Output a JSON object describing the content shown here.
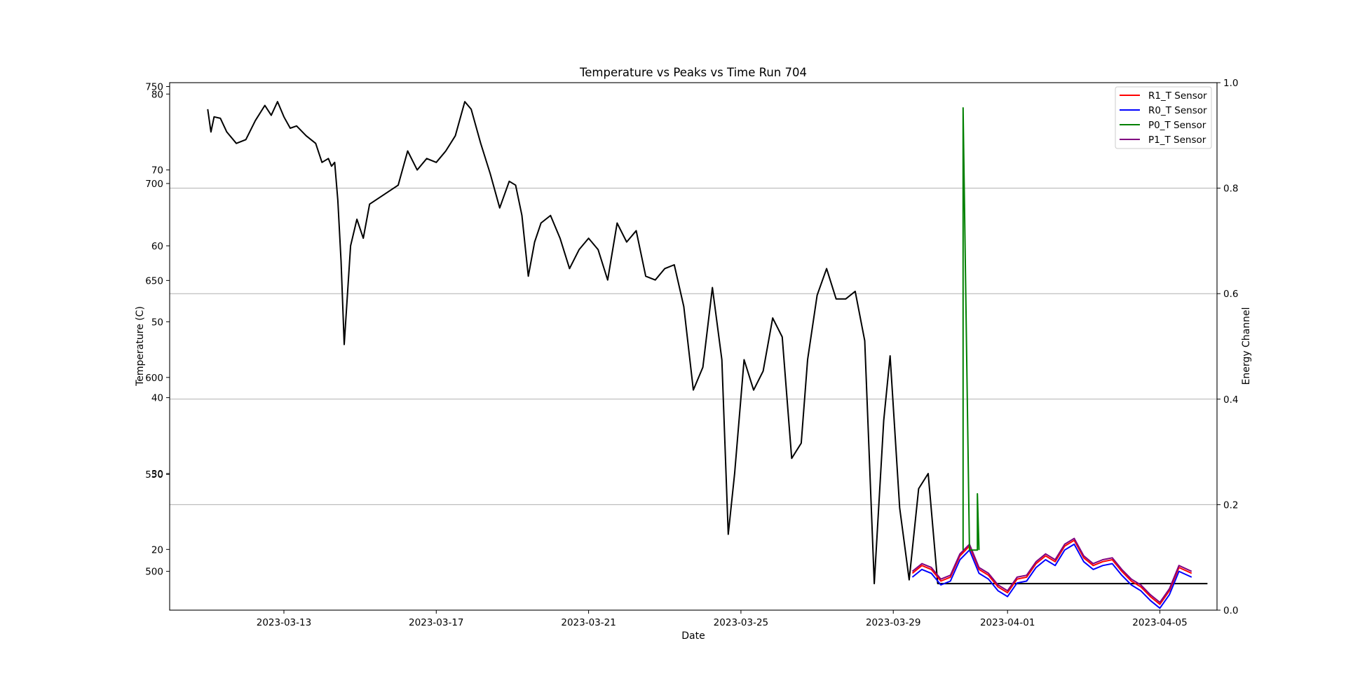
{
  "chart_data": {
    "type": "line",
    "title": "Temperature vs Peaks vs Time Run 704",
    "xlabel": "Date",
    "ylabel_left": "Temperature (C)",
    "ylabel_right": "Energy Channel",
    "xlim": [
      "2023-03-10T00:00",
      "2023-04-06T12:00"
    ],
    "x_ticks": [
      "2023-03-13",
      "2023-03-17",
      "2023-03-21",
      "2023-03-25",
      "2023-03-29",
      "2023-04-01",
      "2023-04-05"
    ],
    "y_left_temp": {
      "range": [
        12,
        81.5
      ],
      "ticks": [
        20,
        30,
        40,
        50,
        60,
        70,
        80
      ]
    },
    "y_left_peaks": {
      "range": [
        480,
        752
      ],
      "ticks": [
        500,
        550,
        600,
        650,
        700,
        750
      ]
    },
    "y_right": {
      "range": [
        0,
        1
      ],
      "ticks": [
        "0.0",
        "0.2",
        "0.4",
        "0.6",
        "0.8",
        "1.0"
      ],
      "grid": true
    },
    "legend_position": "top-right",
    "series": [
      {
        "name": "R1_T Sensor",
        "color": "#ff0000",
        "x": [
          "2023-03-29T12:00",
          "2023-03-29T18:00",
          "2023-03-30T00:00",
          "2023-03-30T06:00",
          "2023-03-30T12:00",
          "2023-03-30T18:00",
          "2023-03-31T00:00",
          "2023-03-31T06:00",
          "2023-03-31T12:00",
          "2023-03-31T18:00",
          "2023-04-01T00:00",
          "2023-04-01T06:00",
          "2023-04-01T12:00",
          "2023-04-01T18:00",
          "2023-04-02T00:00",
          "2023-04-02T06:00",
          "2023-04-02T12:00",
          "2023-04-02T18:00",
          "2023-04-03T00:00",
          "2023-04-03T06:00",
          "2023-04-03T12:00",
          "2023-04-03T18:00",
          "2023-04-04T00:00",
          "2023-04-04T06:00",
          "2023-04-04T12:00",
          "2023-04-04T18:00",
          "2023-04-05T00:00",
          "2023-04-05T06:00",
          "2023-04-05T12:00",
          "2023-04-05T20:00"
        ],
        "y": [
          499,
          503,
          501,
          495,
          497,
          508,
          513,
          501,
          498,
          492,
          489,
          496,
          497,
          504,
          508,
          505,
          513,
          516,
          507,
          503,
          505,
          506,
          500,
          495,
          492,
          487,
          483,
          490,
          502,
          499
        ]
      },
      {
        "name": "R0_T Sensor",
        "color": "#0000ff",
        "x": [
          "2023-03-29T12:00",
          "2023-03-29T18:00",
          "2023-03-30T00:00",
          "2023-03-30T06:00",
          "2023-03-30T12:00",
          "2023-03-30T18:00",
          "2023-03-31T00:00",
          "2023-03-31T06:00",
          "2023-03-31T12:00",
          "2023-03-31T18:00",
          "2023-04-01T00:00",
          "2023-04-01T06:00",
          "2023-04-01T12:00",
          "2023-04-01T18:00",
          "2023-04-02T00:00",
          "2023-04-02T06:00",
          "2023-04-02T12:00",
          "2023-04-02T18:00",
          "2023-04-03T00:00",
          "2023-04-03T06:00",
          "2023-04-03T12:00",
          "2023-04-03T18:00",
          "2023-04-04T00:00",
          "2023-04-04T06:00",
          "2023-04-04T12:00",
          "2023-04-04T18:00",
          "2023-04-05T00:00",
          "2023-04-05T06:00",
          "2023-04-05T12:00",
          "2023-04-05T20:00"
        ],
        "y": [
          497,
          501,
          499,
          493,
          495,
          506,
          511,
          499,
          496,
          490,
          487,
          494,
          495,
          502,
          506,
          503,
          511,
          514,
          505,
          501,
          503,
          504,
          498,
          493,
          490,
          485,
          481,
          488,
          500,
          497
        ]
      },
      {
        "name": "P0_T Sensor",
        "color": "#008000",
        "x": [
          "2023-03-30T20:00",
          "2023-03-30T20:00",
          "2023-03-31T00:00",
          "2023-03-31T05:00",
          "2023-03-31T05:00",
          "2023-03-31T06:00"
        ],
        "y": [
          511,
          739,
          511,
          511,
          540,
          511
        ]
      },
      {
        "name": "P1_T Sensor",
        "color": "#800080",
        "x": [
          "2023-03-29T12:00",
          "2023-03-29T18:00",
          "2023-03-30T00:00",
          "2023-03-30T06:00",
          "2023-03-30T12:00",
          "2023-03-30T18:00",
          "2023-03-31T00:00",
          "2023-03-31T06:00",
          "2023-03-31T12:00",
          "2023-03-31T18:00",
          "2023-04-01T00:00",
          "2023-04-01T06:00",
          "2023-04-01T12:00",
          "2023-04-01T18:00",
          "2023-04-02T00:00",
          "2023-04-02T06:00",
          "2023-04-02T12:00",
          "2023-04-02T18:00",
          "2023-04-03T00:00",
          "2023-04-03T06:00",
          "2023-04-03T12:00",
          "2023-04-03T18:00",
          "2023-04-04T00:00",
          "2023-04-04T06:00",
          "2023-04-04T12:00",
          "2023-04-04T18:00",
          "2023-04-05T00:00",
          "2023-04-05T06:00",
          "2023-04-05T12:00",
          "2023-04-05T20:00"
        ],
        "y": [
          500,
          504,
          502,
          496,
          498,
          509,
          514,
          502,
          499,
          493,
          490,
          497,
          498,
          505,
          509,
          506,
          514,
          517,
          508,
          504,
          506,
          507,
          501,
          496,
          493,
          488,
          484,
          491,
          503,
          500
        ]
      },
      {
        "name": "",
        "color": "#000000",
        "x": [
          "2023-03-11T00:00",
          "2023-03-11T02:00",
          "2023-03-11T04:00",
          "2023-03-11T08:00",
          "2023-03-11T12:00",
          "2023-03-11T18:00",
          "2023-03-12T00:00",
          "2023-03-12T06:00",
          "2023-03-12T12:00",
          "2023-03-12T16:00",
          "2023-03-12T20:00",
          "2023-03-13T00:00",
          "2023-03-13T04:00",
          "2023-03-13T08:00",
          "2023-03-13T14:00",
          "2023-03-13T20:00",
          "2023-03-14T00:00",
          "2023-03-14T04:00",
          "2023-03-14T06:00",
          "2023-03-14T08:00",
          "2023-03-14T10:00",
          "2023-03-14T12:00",
          "2023-03-14T14:00",
          "2023-03-14T18:00",
          "2023-03-14T22:00",
          "2023-03-15T02:00",
          "2023-03-15T06:00",
          "2023-03-16T00:00",
          "2023-03-16T06:00",
          "2023-03-16T12:00",
          "2023-03-16T18:00",
          "2023-03-17T00:00",
          "2023-03-17T06:00",
          "2023-03-17T12:00",
          "2023-03-17T18:00",
          "2023-03-17T22:00",
          "2023-03-18T04:00",
          "2023-03-18T10:00",
          "2023-03-18T16:00",
          "2023-03-18T22:00",
          "2023-03-19T02:00",
          "2023-03-19T06:00",
          "2023-03-19T10:00",
          "2023-03-19T14:00",
          "2023-03-19T18:00",
          "2023-03-20T00:00",
          "2023-03-20T06:00",
          "2023-03-20T12:00",
          "2023-03-20T18:00",
          "2023-03-21T00:00",
          "2023-03-21T06:00",
          "2023-03-21T12:00",
          "2023-03-21T18:00",
          "2023-03-22T00:00",
          "2023-03-22T06:00",
          "2023-03-22T12:00",
          "2023-03-22T18:00",
          "2023-03-23T00:00",
          "2023-03-23T06:00",
          "2023-03-23T12:00",
          "2023-03-23T18:00",
          "2023-03-24T00:00",
          "2023-03-24T06:00",
          "2023-03-24T12:00",
          "2023-03-24T16:00",
          "2023-03-24T20:00",
          "2023-03-25T02:00",
          "2023-03-25T08:00",
          "2023-03-25T14:00",
          "2023-03-25T20:00",
          "2023-03-26T02:00",
          "2023-03-26T08:00",
          "2023-03-26T14:00",
          "2023-03-26T18:00",
          "2023-03-27T00:00",
          "2023-03-27T06:00",
          "2023-03-27T12:00",
          "2023-03-27T18:00",
          "2023-03-28T00:00",
          "2023-03-28T06:00",
          "2023-03-28T12:00",
          "2023-03-28T18:00",
          "2023-03-28T22:00",
          "2023-03-29T04:00",
          "2023-03-29T10:00",
          "2023-03-29T16:00",
          "2023-03-29T22:00",
          "2023-03-30T04:00",
          "2023-03-30T10:00",
          "2023-03-30T16:00",
          "2023-03-30T22:00",
          "2023-04-06T06:00"
        ],
        "y": [
          78.0,
          75.0,
          77.0,
          76.8,
          75.0,
          73.5,
          74.0,
          76.5,
          78.5,
          77.2,
          79.0,
          77.0,
          75.5,
          75.8,
          74.5,
          73.5,
          71.0,
          71.5,
          70.5,
          71.0,
          66.0,
          58.0,
          47.0,
          60.0,
          63.5,
          61.0,
          65.5,
          68.0,
          72.5,
          70.0,
          71.5,
          71.0,
          72.5,
          74.5,
          79.0,
          78.0,
          73.5,
          69.5,
          65.0,
          68.5,
          68.0,
          64.0,
          56.0,
          60.5,
          63.0,
          64.0,
          61.0,
          57.0,
          59.5,
          61.0,
          59.5,
          55.5,
          63.0,
          60.5,
          62.0,
          56.0,
          55.5,
          57.0,
          57.5,
          52.0,
          41.0,
          44.0,
          54.5,
          45.0,
          22.0,
          30.0,
          45.0,
          41.0,
          43.5,
          50.5,
          48.0,
          32.0,
          34.0,
          45.0,
          53.5,
          57.0,
          53.0,
          53.0,
          54.0,
          47.5,
          15.5,
          37.0,
          45.5,
          25.5,
          16.0,
          28.0,
          30.0,
          15.5,
          15.5,
          15.5,
          15.5,
          15.5
        ]
      }
    ]
  }
}
